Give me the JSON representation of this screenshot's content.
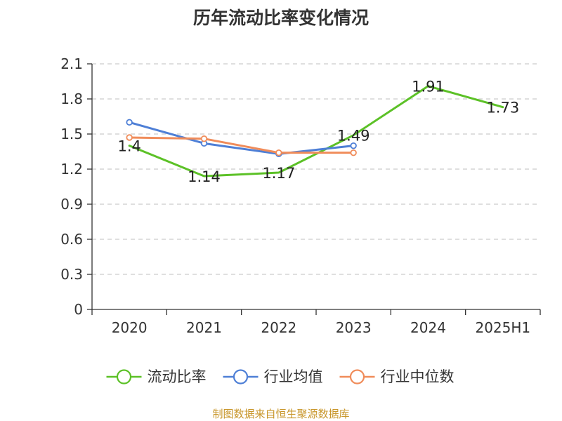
{
  "chart_data": {
    "type": "line",
    "title": "历年流动比率变化情况",
    "categories": [
      "2020",
      "2021",
      "2022",
      "2023",
      "2024",
      "2025H1"
    ],
    "ylim": [
      0,
      2.1
    ],
    "yticks": [
      "0",
      "0.3",
      "0.6",
      "0.9",
      "1.2",
      "1.5",
      "1.8",
      "2.1"
    ],
    "grid": true,
    "legend_position": "bottom",
    "series": [
      {
        "name": "流动比率",
        "color": "#5cc127",
        "values": [
          1.4,
          1.14,
          1.17,
          1.49,
          1.91,
          1.73
        ],
        "labels": [
          "1.4",
          "1.14",
          "1.17",
          "1.49",
          "1.91",
          "1.73"
        ],
        "markers": false
      },
      {
        "name": "行业均值",
        "color": "#4e7fd6",
        "values": [
          1.6,
          1.42,
          1.33,
          1.4,
          null,
          null
        ],
        "markers": true
      },
      {
        "name": "行业中位数",
        "color": "#f08c5a",
        "values": [
          1.47,
          1.46,
          1.34,
          1.34,
          null,
          null
        ],
        "markers": true
      }
    ]
  },
  "source": "制图数据来自恒生聚源数据库"
}
